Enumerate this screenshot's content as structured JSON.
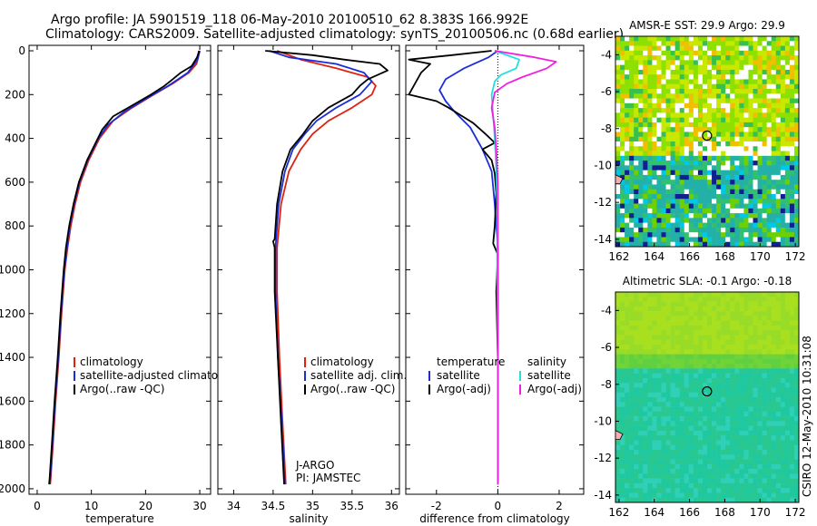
{
  "header": {
    "line1": "Argo profile: JA 5901519_118 06-May-2010 20100510_62 8.383S 166.992E",
    "line2": "Climatology: CARS2009. Satellite-adjusted climatology: synTS_20100506.nc (0.68d earlier)"
  },
  "side_caption": "CSIRO 12-May-2010 10:31:08",
  "colors": {
    "climatology": "#dd2211",
    "satellite": "#1a2ed8",
    "argo": "#000000",
    "cyan": "#22e0e0",
    "magenta": "#f020e0"
  },
  "chart_data": [
    {
      "type": "line",
      "panel": "temperature",
      "xlabel": "temperature",
      "ylabel": "",
      "ylim": [
        0,
        2050
      ],
      "y_inverted": true,
      "xlim": [
        -1.5,
        32
      ],
      "xticks": [
        0,
        10,
        20,
        30
      ],
      "yticks": [
        0,
        200,
        400,
        600,
        800,
        1000,
        1200,
        1400,
        1600,
        1800,
        2000
      ],
      "legend": [
        "climatology",
        "satellite-adjusted climatology",
        "Argo(..raw -QC)"
      ],
      "legend_position": "lower-right",
      "series": [
        {
          "name": "climatology",
          "color": "#dd2211",
          "points": [
            [
              29.8,
              0
            ],
            [
              29.7,
              30
            ],
            [
              29.4,
              60
            ],
            [
              28.0,
              100
            ],
            [
              25.0,
              150
            ],
            [
              21.5,
              200
            ],
            [
              17.5,
              260
            ],
            [
              14.0,
              320
            ],
            [
              11.5,
              400
            ],
            [
              9.5,
              500
            ],
            [
              8.0,
              600
            ],
            [
              7.0,
              700
            ],
            [
              6.2,
              800
            ],
            [
              5.6,
              900
            ],
            [
              5.1,
              1000
            ],
            [
              4.5,
              1200
            ],
            [
              4.0,
              1400
            ],
            [
              3.4,
              1600
            ],
            [
              2.9,
              1800
            ],
            [
              2.5,
              1950
            ],
            [
              2.4,
              1980
            ]
          ]
        },
        {
          "name": "satellite-adjusted climatology",
          "color": "#1a2ed8",
          "points": [
            [
              30.0,
              0
            ],
            [
              29.6,
              40
            ],
            [
              27.8,
              100
            ],
            [
              24.2,
              160
            ],
            [
              20.0,
              220
            ],
            [
              16.0,
              280
            ],
            [
              13.0,
              340
            ],
            [
              11.3,
              400
            ],
            [
              9.3,
              500
            ],
            [
              7.8,
              600
            ],
            [
              6.8,
              700
            ],
            [
              6.0,
              800
            ],
            [
              5.5,
              900
            ],
            [
              5.0,
              1000
            ],
            [
              4.4,
              1200
            ],
            [
              3.9,
              1400
            ],
            [
              3.3,
              1600
            ],
            [
              2.8,
              1800
            ],
            [
              2.4,
              1950
            ],
            [
              2.3,
              1980
            ]
          ]
        },
        {
          "name": "Argo(..raw -QC)",
          "color": "#000000",
          "points": [
            [
              29.9,
              0
            ],
            [
              29.5,
              30
            ],
            [
              28.5,
              70
            ],
            [
              26.5,
              100
            ],
            [
              25.0,
              130
            ],
            [
              23.5,
              160
            ],
            [
              21.0,
              200
            ],
            [
              17.5,
              250
            ],
            [
              14.0,
              300
            ],
            [
              12.0,
              360
            ],
            [
              10.8,
              420
            ],
            [
              9.2,
              500
            ],
            [
              7.7,
              600
            ],
            [
              6.7,
              700
            ],
            [
              5.9,
              800
            ],
            [
              5.3,
              900
            ],
            [
              4.9,
              1000
            ],
            [
              4.3,
              1200
            ],
            [
              3.8,
              1400
            ],
            [
              3.2,
              1600
            ],
            [
              2.7,
              1800
            ],
            [
              2.3,
              1950
            ],
            [
              2.2,
              1980
            ]
          ]
        }
      ]
    },
    {
      "type": "line",
      "panel": "salinity",
      "xlabel": "salinity",
      "ylim": [
        0,
        2050
      ],
      "y_inverted": true,
      "xlim": [
        33.8,
        36.1
      ],
      "xticks": [
        34,
        34.5,
        35,
        35.5,
        36
      ],
      "legend": [
        "climatology",
        "satellite adj. clim.",
        "Argo(..raw -QC)"
      ],
      "legend_position": "lower-right",
      "annotation": [
        "J-ARGO",
        "PI: JAMSTEC"
      ],
      "series": [
        {
          "name": "climatology",
          "color": "#dd2211",
          "points": [
            [
              34.55,
              0
            ],
            [
              34.85,
              40
            ],
            [
              35.3,
              80
            ],
            [
              35.7,
              120
            ],
            [
              35.8,
              160
            ],
            [
              35.75,
              200
            ],
            [
              35.5,
              260
            ],
            [
              35.2,
              320
            ],
            [
              35.0,
              380
            ],
            [
              34.85,
              450
            ],
            [
              34.7,
              550
            ],
            [
              34.6,
              700
            ],
            [
              34.55,
              900
            ],
            [
              34.55,
              1100
            ],
            [
              34.58,
              1400
            ],
            [
              34.62,
              1700
            ],
            [
              34.66,
              1980
            ]
          ]
        },
        {
          "name": "satellite adj. clim.",
          "color": "#1a2ed8",
          "points": [
            [
              34.45,
              0
            ],
            [
              34.7,
              30
            ],
            [
              35.3,
              60
            ],
            [
              35.65,
              100
            ],
            [
              35.75,
              140
            ],
            [
              35.6,
              200
            ],
            [
              35.3,
              260
            ],
            [
              35.05,
              320
            ],
            [
              34.9,
              380
            ],
            [
              34.75,
              450
            ],
            [
              34.65,
              550
            ],
            [
              34.57,
              700
            ],
            [
              34.53,
              900
            ],
            [
              34.53,
              1100
            ],
            [
              34.56,
              1400
            ],
            [
              34.61,
              1700
            ],
            [
              34.65,
              1980
            ]
          ]
        },
        {
          "name": "Argo(..raw -QC)",
          "color": "#000000",
          "points": [
            [
              34.4,
              0
            ],
            [
              35.0,
              20
            ],
            [
              35.4,
              40
            ],
            [
              35.85,
              60
            ],
            [
              35.95,
              90
            ],
            [
              35.7,
              130
            ],
            [
              35.6,
              160
            ],
            [
              35.5,
              200
            ],
            [
              35.2,
              260
            ],
            [
              35.0,
              320
            ],
            [
              34.88,
              380
            ],
            [
              34.72,
              450
            ],
            [
              34.62,
              550
            ],
            [
              34.55,
              700
            ],
            [
              34.52,
              860
            ],
            [
              34.5,
              870
            ],
            [
              34.52,
              900
            ],
            [
              34.52,
              1100
            ],
            [
              34.56,
              1400
            ],
            [
              34.6,
              1700
            ],
            [
              34.64,
              1980
            ]
          ]
        }
      ]
    },
    {
      "type": "line",
      "panel": "difference",
      "xlabel": "difference from climatology",
      "ylim": [
        0,
        2050
      ],
      "y_inverted": true,
      "xlim": [
        -3,
        2.8
      ],
      "xticks": [
        -2,
        0,
        2
      ],
      "legend_groups": [
        {
          "title": "temperature",
          "items": [
            "satellite",
            "Argo(-adj)"
          ]
        },
        {
          "title": "salinity",
          "items": [
            "satellite",
            "Argo(-adj)"
          ]
        }
      ],
      "series": [
        {
          "name": "temperature satellite",
          "color": "#1a2ed8",
          "points": [
            [
              0,
              0
            ],
            [
              -0.3,
              30
            ],
            [
              -1.1,
              80
            ],
            [
              -1.7,
              130
            ],
            [
              -1.9,
              180
            ],
            [
              -1.7,
              230
            ],
            [
              -1.4,
              280
            ],
            [
              -0.9,
              350
            ],
            [
              -0.5,
              450
            ],
            [
              -0.2,
              550
            ],
            [
              -0.1,
              700
            ],
            [
              0,
              900
            ],
            [
              0,
              1200
            ],
            [
              0,
              1600
            ],
            [
              0,
              1980
            ]
          ]
        },
        {
          "name": "temperature Argo(-adj)",
          "color": "#000000",
          "points": [
            [
              -0.2,
              0
            ],
            [
              -1.5,
              20
            ],
            [
              -2.9,
              40
            ],
            [
              -2.2,
              60
            ],
            [
              -2.5,
              100
            ],
            [
              -2.9,
              200
            ],
            [
              -2.0,
              230
            ],
            [
              -1.6,
              260
            ],
            [
              -0.8,
              330
            ],
            [
              -0.4,
              380
            ],
            [
              -0.1,
              420
            ],
            [
              -0.5,
              450
            ],
            [
              -0.2,
              500
            ],
            [
              -0.1,
              560
            ],
            [
              -0.05,
              650
            ],
            [
              -0.1,
              800
            ],
            [
              -0.15,
              880
            ],
            [
              0,
              930
            ],
            [
              -0.05,
              1100
            ],
            [
              0,
              1400
            ],
            [
              0,
              1700
            ],
            [
              0,
              1980
            ]
          ]
        },
        {
          "name": "salinity satellite",
          "color": "#22e0e0",
          "points": [
            [
              -0.1,
              0
            ],
            [
              0.7,
              40
            ],
            [
              0.6,
              80
            ],
            [
              0.1,
              110
            ],
            [
              -0.1,
              140
            ],
            [
              -0.2,
              200
            ],
            [
              -0.15,
              300
            ],
            [
              -0.1,
              400
            ],
            [
              -0.05,
              550
            ],
            [
              -0.02,
              700
            ],
            [
              -0.02,
              1000
            ],
            [
              0,
              1400
            ],
            [
              0,
              1980
            ]
          ]
        },
        {
          "name": "salinity Argo(-adj)",
          "color": "#f020e0",
          "points": [
            [
              -0.1,
              0
            ],
            [
              1.2,
              30
            ],
            [
              1.9,
              50
            ],
            [
              1.6,
              80
            ],
            [
              0.8,
              120
            ],
            [
              0.3,
              150
            ],
            [
              -0.1,
              190
            ],
            [
              -0.2,
              260
            ],
            [
              -0.1,
              350
            ],
            [
              -0.05,
              450
            ],
            [
              0,
              600
            ],
            [
              0,
              800
            ],
            [
              0,
              1000
            ],
            [
              0,
              1400
            ],
            [
              0,
              1980
            ]
          ]
        }
      ]
    }
  ],
  "maps": [
    {
      "title": "AMSR-E SST: 29.9 Argo: 29.9",
      "yticks": [
        -4,
        -6,
        -8,
        -10,
        -12,
        -14
      ],
      "xticks": [
        162,
        164,
        166,
        168,
        170,
        172
      ]
    },
    {
      "title": "Altimetric SLA: -0.1 Argo: -0.18",
      "yticks": [
        -4,
        -6,
        -8,
        -10,
        -12,
        -14
      ],
      "xticks": [
        162,
        164,
        166,
        168,
        170,
        172
      ]
    }
  ]
}
